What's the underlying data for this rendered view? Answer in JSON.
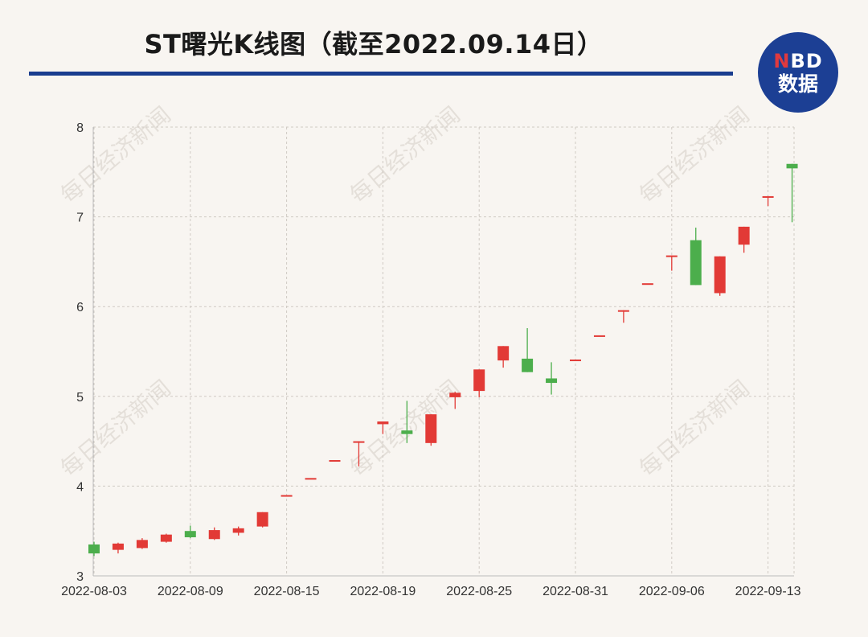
{
  "header": {
    "title": "ST曙光K线图（截至2022.09.14日）",
    "logo_line1_accent": "N",
    "logo_line1_rest": "BD",
    "logo_line2": "数据",
    "brand_color": "#1c3f94",
    "accent_color": "#e0393e"
  },
  "watermark_text": "每日经济新闻",
  "chart_data": {
    "type": "candlestick",
    "title": "ST曙光K线图（截至2022.09.14日）",
    "ylim": [
      3,
      8
    ],
    "yticks": [
      3,
      4,
      5,
      6,
      7,
      8
    ],
    "xtick_labels": [
      "2022-08-03",
      "2022-08-09",
      "2022-08-15",
      "2022-08-19",
      "2022-08-25",
      "2022-08-31",
      "2022-09-06",
      "2022-09-13"
    ],
    "xtick_indices": [
      0,
      4,
      8,
      12,
      16,
      20,
      24,
      28
    ],
    "grid": true,
    "up_color": "#e23a36",
    "down_color": "#4cae4c",
    "candles": [
      {
        "date": "2022-08-03",
        "open": 3.35,
        "close": 3.25,
        "high": 3.38,
        "low": 3.22
      },
      {
        "date": "2022-08-04",
        "open": 3.29,
        "close": 3.36,
        "high": 3.37,
        "low": 3.25
      },
      {
        "date": "2022-08-05",
        "open": 3.31,
        "close": 3.4,
        "high": 3.42,
        "low": 3.3
      },
      {
        "date": "2022-08-08",
        "open": 3.38,
        "close": 3.46,
        "high": 3.47,
        "low": 3.37
      },
      {
        "date": "2022-08-09",
        "open": 3.5,
        "close": 3.43,
        "high": 3.56,
        "low": 3.42
      },
      {
        "date": "2022-08-10",
        "open": 3.41,
        "close": 3.51,
        "high": 3.54,
        "low": 3.4
      },
      {
        "date": "2022-08-11",
        "open": 3.48,
        "close": 3.53,
        "high": 3.55,
        "low": 3.45
      },
      {
        "date": "2022-08-12",
        "open": 3.55,
        "close": 3.71,
        "high": 3.71,
        "low": 3.54
      },
      {
        "date": "2022-08-15",
        "open": 3.9,
        "close": 3.9,
        "high": 3.9,
        "low": 3.9
      },
      {
        "date": "2022-08-16",
        "open": 4.09,
        "close": 4.09,
        "high": 4.09,
        "low": 4.09
      },
      {
        "date": "2022-08-17",
        "open": 4.29,
        "close": 4.29,
        "high": 4.29,
        "low": 4.29
      },
      {
        "date": "2022-08-18",
        "open": 4.5,
        "close": 4.5,
        "high": 4.5,
        "low": 4.22
      },
      {
        "date": "2022-08-19",
        "open": 4.69,
        "close": 4.72,
        "high": 4.72,
        "low": 4.58
      },
      {
        "date": "2022-08-22",
        "open": 4.62,
        "close": 4.58,
        "high": 4.95,
        "low": 4.48
      },
      {
        "date": "2022-08-23",
        "open": 4.48,
        "close": 4.8,
        "high": 4.8,
        "low": 4.45
      },
      {
        "date": "2022-08-24",
        "open": 4.99,
        "close": 5.04,
        "high": 5.05,
        "low": 4.86
      },
      {
        "date": "2022-08-25",
        "open": 5.06,
        "close": 5.3,
        "high": 5.3,
        "low": 4.99
      },
      {
        "date": "2022-08-26",
        "open": 5.4,
        "close": 5.56,
        "high": 5.56,
        "low": 5.32
      },
      {
        "date": "2022-08-29",
        "open": 5.42,
        "close": 5.27,
        "high": 5.76,
        "low": 5.27
      },
      {
        "date": "2022-08-30",
        "open": 5.2,
        "close": 5.15,
        "high": 5.38,
        "low": 5.02
      },
      {
        "date": "2022-08-31",
        "open": 5.41,
        "close": 5.41,
        "high": 5.41,
        "low": 5.41
      },
      {
        "date": "2022-09-01",
        "open": 5.68,
        "close": 5.68,
        "high": 5.68,
        "low": 5.68
      },
      {
        "date": "2022-09-02",
        "open": 5.96,
        "close": 5.96,
        "high": 5.96,
        "low": 5.82
      },
      {
        "date": "2022-09-05",
        "open": 6.26,
        "close": 6.26,
        "high": 6.26,
        "low": 6.26
      },
      {
        "date": "2022-09-06",
        "open": 6.57,
        "close": 6.57,
        "high": 6.57,
        "low": 6.4
      },
      {
        "date": "2022-09-07",
        "open": 6.74,
        "close": 6.24,
        "high": 6.88,
        "low": 6.24
      },
      {
        "date": "2022-09-08",
        "open": 6.15,
        "close": 6.56,
        "high": 6.56,
        "low": 6.12
      },
      {
        "date": "2022-09-09",
        "open": 6.69,
        "close": 6.89,
        "high": 6.89,
        "low": 6.6
      },
      {
        "date": "2022-09-13",
        "open": 7.23,
        "close": 7.23,
        "high": 7.23,
        "low": 7.12
      },
      {
        "date": "2022-09-14",
        "open": 7.59,
        "close": 7.54,
        "high": 7.59,
        "low": 6.94
      }
    ]
  }
}
